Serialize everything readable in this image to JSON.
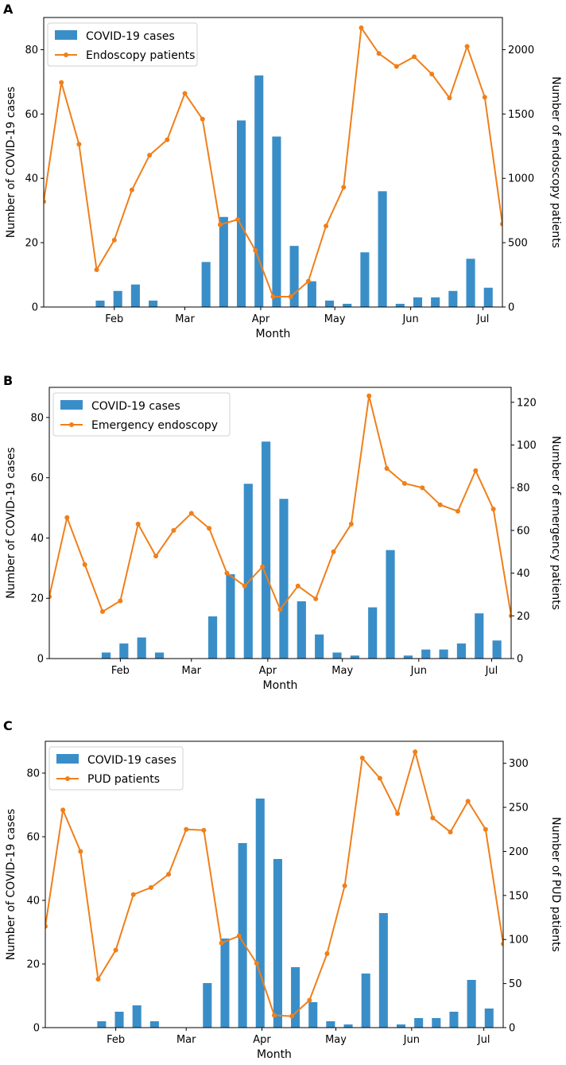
{
  "colors": {
    "bar": "#3a8ec8",
    "line": "#f07f1a"
  },
  "chart_data": [
    {
      "panel": "A",
      "type": "bar+line",
      "xlabel": "Month",
      "ylabel_left": "Number of COVID-19 cases",
      "ylabel_right": "Number of endoscopy patients",
      "ylim_left": [
        0,
        90
      ],
      "ylim_right": [
        0,
        2250
      ],
      "yticks_left": [
        0,
        20,
        40,
        60,
        80
      ],
      "yticks_right": [
        0,
        500,
        1000,
        1500,
        2000
      ],
      "xlim": [
        -0.5,
        25.5
      ],
      "month_labels": [
        "Feb",
        "Mar",
        "Apr",
        "May",
        "Jun",
        "Jul"
      ],
      "month_positions": [
        3.5,
        7.5,
        11.8,
        16,
        20.3,
        24.4
      ],
      "bar_positions": [
        2.7,
        3.7,
        4.7,
        5.7,
        8.7,
        9.7,
        10.7,
        11.7,
        12.7,
        13.7,
        14.7,
        15.7,
        16.7,
        17.7,
        18.7,
        19.7,
        20.7,
        21.7,
        22.7,
        23.7,
        24.7
      ],
      "bars": {
        "name": "COVID-19 cases",
        "values": [
          2,
          5,
          7,
          2,
          14,
          28,
          58,
          72,
          53,
          19,
          8,
          2,
          1,
          17,
          36,
          1,
          3,
          3,
          5,
          15,
          6
        ]
      },
      "line_positions": [
        -0.5,
        0.5,
        1.5,
        2.5,
        3.5,
        4.5,
        5.5,
        6.5,
        7.5,
        8.5,
        9.5,
        10.5,
        11.5,
        12.5,
        13.5,
        14.5,
        15.5,
        16.5,
        17.5,
        18.5,
        19.5,
        20.5,
        21.5,
        22.5,
        23.5,
        24.5,
        25.5
      ],
      "line": {
        "name": "Endoscopy patients",
        "values": [
          820,
          1745,
          1265,
          290,
          520,
          910,
          1180,
          1300,
          1660,
          1460,
          640,
          680,
          440,
          80,
          80,
          200,
          630,
          930,
          2170,
          1970,
          1870,
          1945,
          1810,
          1625,
          2025,
          1630,
          645
        ]
      },
      "legend": [
        "COVID-19 cases",
        "Endoscopy patients"
      ]
    },
    {
      "panel": "B",
      "type": "bar+line",
      "xlabel": "Month",
      "ylabel_left": "Number of COVID-19 cases",
      "ylabel_right": "Number of emergency patients",
      "ylim_left": [
        0,
        90
      ],
      "ylim_right": [
        0,
        127
      ],
      "yticks_left": [
        0,
        20,
        40,
        60,
        80
      ],
      "yticks_right": [
        0,
        20,
        40,
        60,
        80,
        100,
        120
      ],
      "xlim": [
        -0.5,
        25.5
      ],
      "month_labels": [
        "Feb",
        "Mar",
        "Apr",
        "May",
        "Jun",
        "Jul"
      ],
      "month_positions": [
        3.5,
        7.5,
        11.8,
        16,
        20.3,
        24.4
      ],
      "bar_positions": [
        2.7,
        3.7,
        4.7,
        5.7,
        8.7,
        9.7,
        10.7,
        11.7,
        12.7,
        13.7,
        14.7,
        15.7,
        16.7,
        17.7,
        18.7,
        19.7,
        20.7,
        21.7,
        22.7,
        23.7,
        24.7
      ],
      "bars": {
        "name": "COVID-19 cases",
        "values": [
          2,
          5,
          7,
          2,
          14,
          28,
          58,
          72,
          53,
          19,
          8,
          2,
          1,
          17,
          36,
          1,
          3,
          3,
          5,
          15,
          6
        ]
      },
      "line_positions": [
        -0.5,
        0.5,
        1.5,
        2.5,
        3.5,
        4.5,
        5.5,
        6.5,
        7.5,
        8.5,
        9.5,
        10.5,
        11.5,
        12.5,
        13.5,
        14.5,
        15.5,
        16.5,
        17.5,
        18.5,
        19.5,
        20.5,
        21.5,
        22.5,
        23.5,
        24.5,
        25.5
      ],
      "line": {
        "name": "Emergency endoscopy",
        "values": [
          29,
          66,
          44,
          22,
          27,
          63,
          48,
          60,
          68,
          61,
          40,
          34,
          43,
          23,
          34,
          28,
          50,
          63,
          123,
          89,
          82,
          80,
          72,
          69,
          88,
          70,
          20
        ]
      },
      "legend": [
        "COVID-19 cases",
        "Emergency endoscopy"
      ]
    },
    {
      "panel": "C",
      "type": "bar+line",
      "xlabel": "Month",
      "ylabel_left": "Number of COVID-19 cases",
      "ylabel_right": "Number of PUD patients",
      "ylim_left": [
        0,
        90
      ],
      "ylim_right": [
        0,
        325
      ],
      "yticks_left": [
        0,
        20,
        40,
        60,
        80
      ],
      "yticks_right": [
        0,
        50,
        100,
        150,
        200,
        250,
        300
      ],
      "xlim": [
        -0.5,
        25.5
      ],
      "month_labels": [
        "Feb",
        "Mar",
        "Apr",
        "May",
        "Jun",
        "Jul"
      ],
      "month_positions": [
        3.5,
        7.5,
        11.8,
        16,
        20.3,
        24.4
      ],
      "bar_positions": [
        2.7,
        3.7,
        4.7,
        5.7,
        8.7,
        9.7,
        10.7,
        11.7,
        12.7,
        13.7,
        14.7,
        15.7,
        16.7,
        17.7,
        18.7,
        19.7,
        20.7,
        21.7,
        22.7,
        23.7,
        24.7
      ],
      "bars": {
        "name": "COVID-19 cases",
        "values": [
          2,
          5,
          7,
          2,
          14,
          28,
          58,
          72,
          53,
          19,
          8,
          2,
          1,
          17,
          36,
          1,
          3,
          3,
          5,
          15,
          6
        ]
      },
      "line_positions": [
        -0.5,
        0.5,
        1.5,
        2.5,
        3.5,
        4.5,
        5.5,
        6.5,
        7.5,
        8.5,
        9.5,
        10.5,
        11.5,
        12.5,
        13.5,
        14.5,
        15.5,
        16.5,
        17.5,
        18.5,
        19.5,
        20.5,
        21.5,
        22.5,
        23.5,
        24.5,
        25.5
      ],
      "line": {
        "name": "PUD patients",
        "values": [
          115,
          247,
          200,
          55,
          88,
          151,
          159,
          174,
          225,
          224,
          96,
          104,
          73,
          14,
          13,
          31,
          84,
          161,
          306,
          283,
          243,
          313,
          238,
          222,
          257,
          225,
          95
        ]
      },
      "legend": [
        "COVID-19 cases",
        "PUD patients"
      ]
    }
  ]
}
